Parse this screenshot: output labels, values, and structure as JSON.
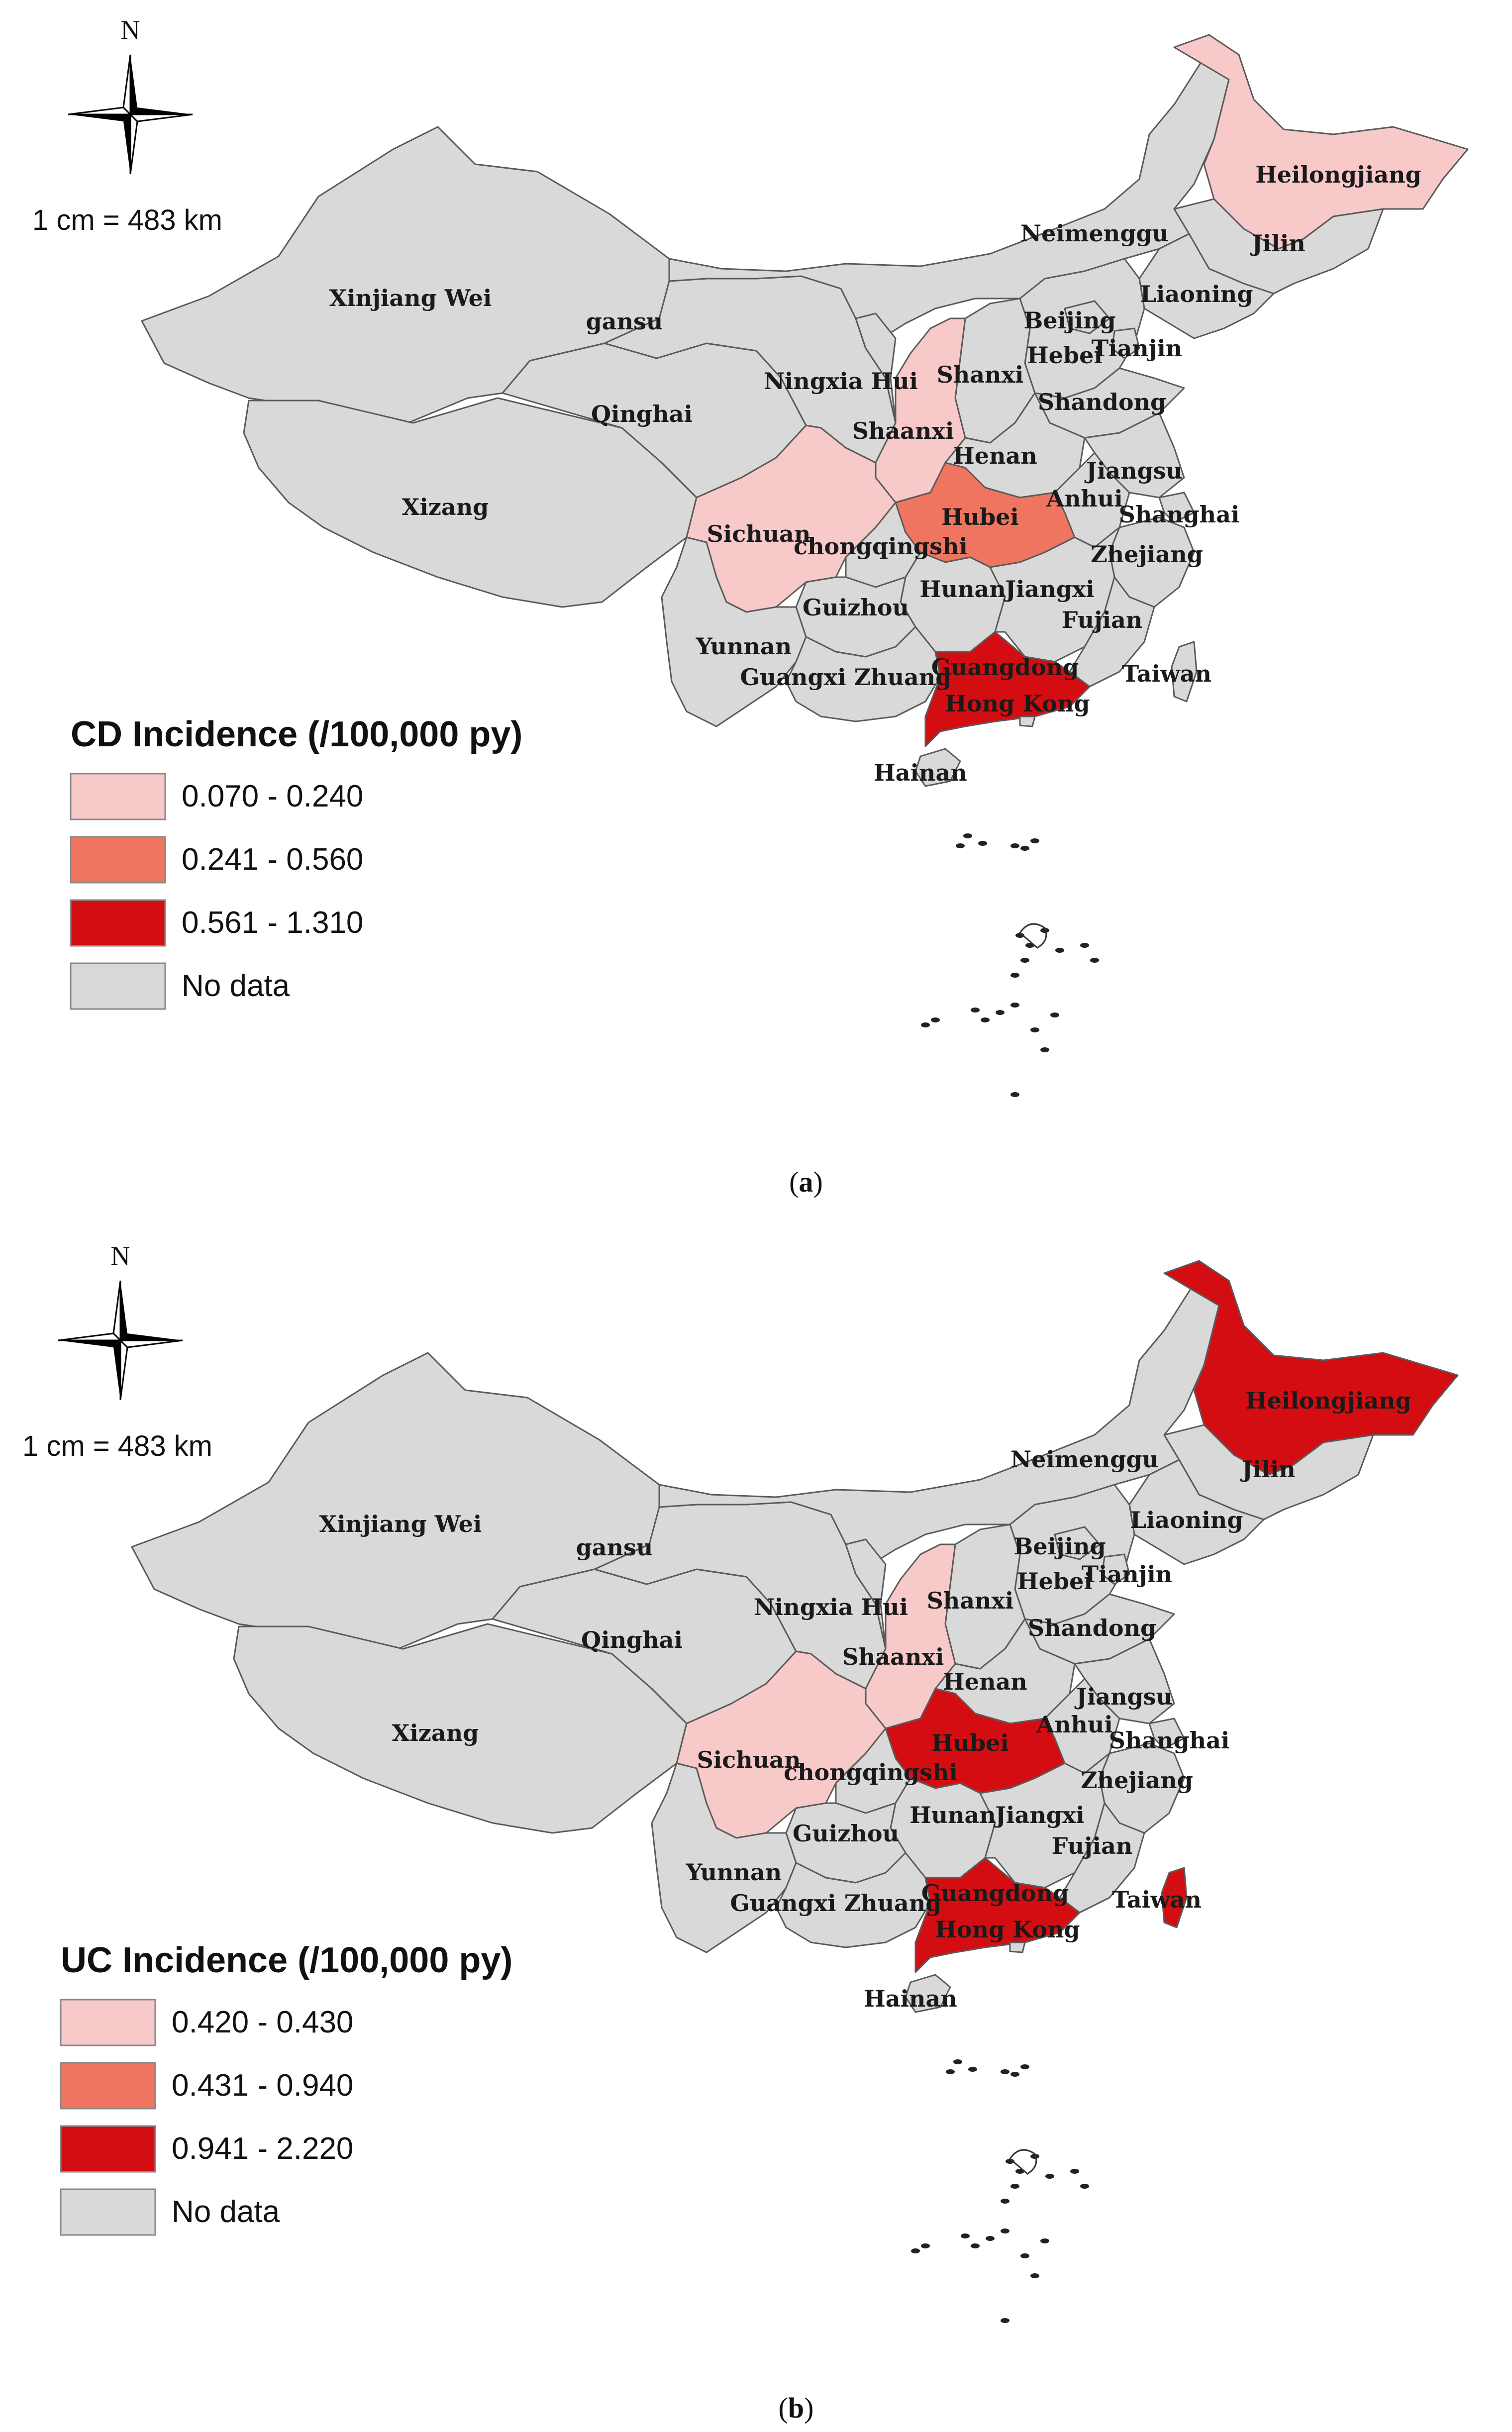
{
  "colors": {
    "no_data": "#d9d9d9",
    "class_1": "#f7c9c9",
    "class_2": "#f07560",
    "class_3": "#d40d12",
    "border": "#5a5a5a"
  },
  "icons": [
    "north-arrow-icon"
  ],
  "maps": [
    {
      "caption_prefix": "(",
      "caption_letter": "a",
      "caption_suffix": ")",
      "north": "N",
      "scale": "1 cm = 483 km",
      "legend": {
        "title": "CD Incidence (/100,000 py)",
        "items": [
          {
            "label": "0.070 - 0.240",
            "class": "class_1"
          },
          {
            "label": "0.241 - 0.560",
            "class": "class_2"
          },
          {
            "label": "0.561 - 1.310",
            "class": "class_3"
          },
          {
            "label": "No data",
            "class": "no_data"
          }
        ]
      },
      "classes": {
        "Heilongjiang": "class_1",
        "Shaanxi": "class_1",
        "Sichuan": "class_1",
        "Hubei": "class_2",
        "Guangdong": "class_3"
      }
    },
    {
      "caption_prefix": "(",
      "caption_letter": "b",
      "caption_suffix": ")",
      "north": "N",
      "scale": "1 cm = 483 km",
      "legend": {
        "title": "UC Incidence (/100,000 py)",
        "items": [
          {
            "label": "0.420 - 0.430",
            "class": "class_1"
          },
          {
            "label": "0.431 - 0.940",
            "class": "class_2"
          },
          {
            "label": "0.941 - 2.220",
            "class": "class_3"
          },
          {
            "label": "No data",
            "class": "no_data"
          }
        ]
      },
      "classes": {
        "Heilongjiang": "class_3",
        "Shaanxi": "class_1",
        "Sichuan": "class_1",
        "Hubei": "class_3",
        "Guangdong": "class_3",
        "Taiwan": "class_3"
      }
    }
  ],
  "province_labels": [
    "Heilongjiang",
    "Jilin",
    "Neimenggu",
    "Liaoning",
    "Xinjiang Wei",
    "gansu",
    "Beijing",
    "Tianjin",
    "Hebei",
    "Ningxia Hui",
    "Shanxi",
    "Qinghai",
    "Shandong",
    "Shaanxi",
    "Henan",
    "Jiangsu",
    "Xizang",
    "Anhui",
    "Shanghai",
    "Hubei",
    "Sichuan",
    "chongqingshi",
    "Zhejiang",
    "Hunan",
    "Jiangxi",
    "Guizhou",
    "Fujian",
    "Yunnan",
    "Guangdong",
    "Taiwan",
    "Guangxi Zhuang",
    "Hong Kong",
    "Hainan"
  ]
}
